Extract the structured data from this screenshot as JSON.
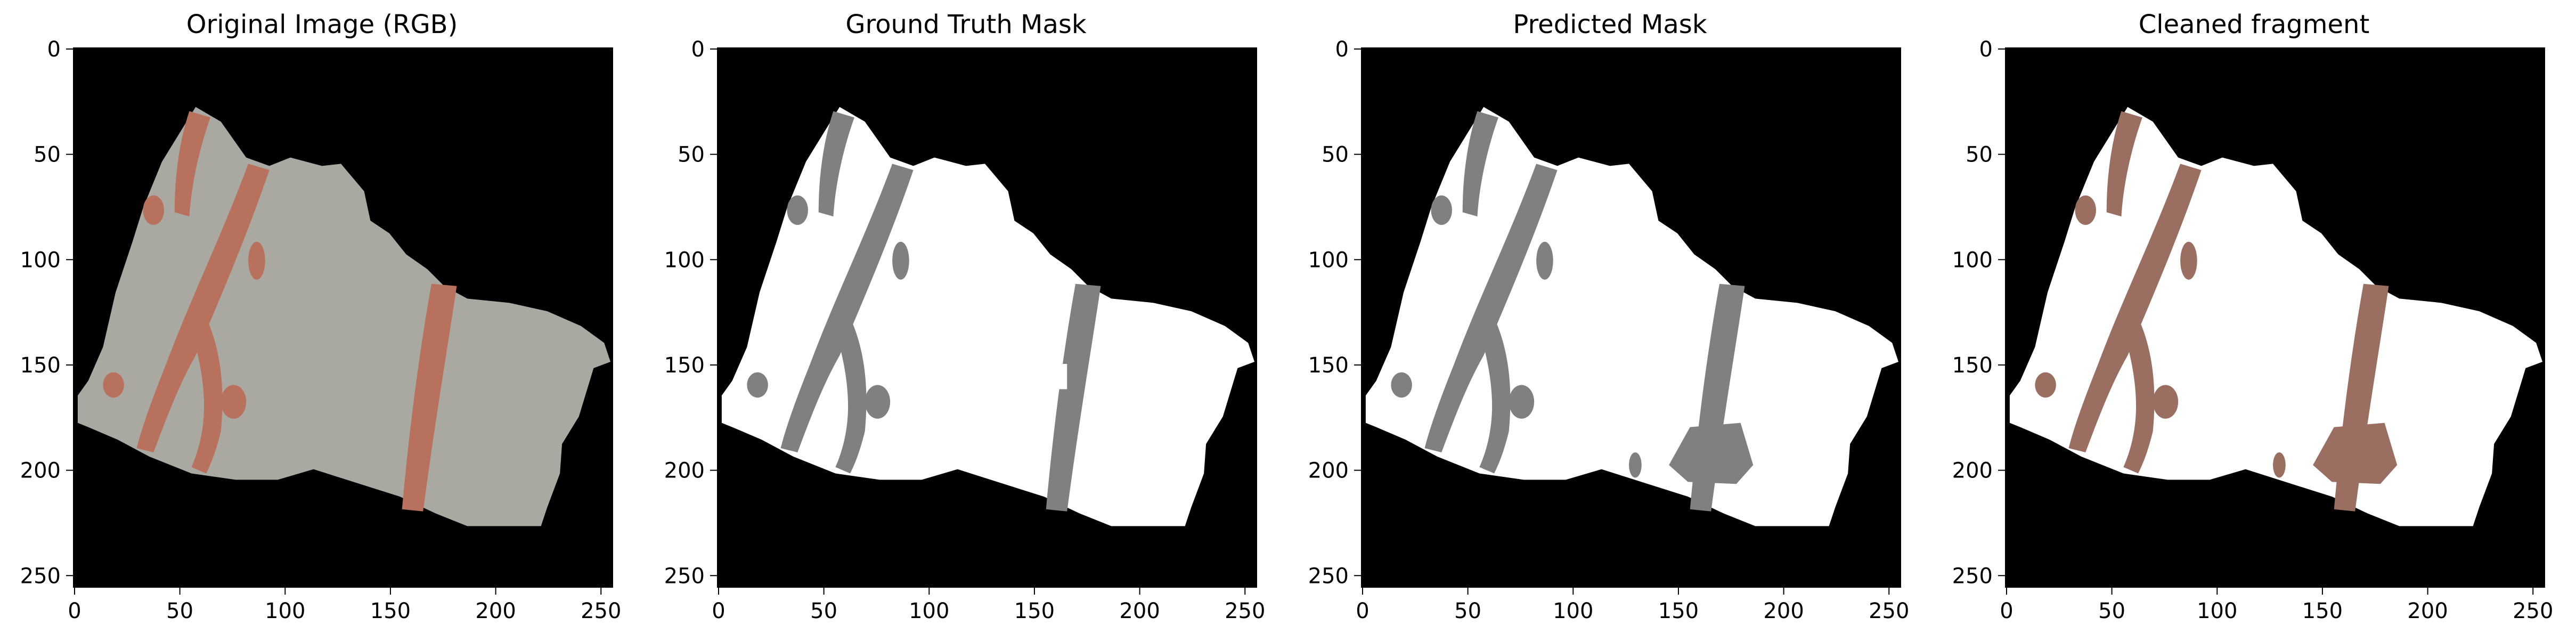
{
  "figure": {
    "panels": [
      {
        "title": "Original Image (RGB)",
        "kind": "rgb",
        "x_ticks": [
          "0",
          "50",
          "100",
          "150",
          "200",
          "250"
        ],
        "y_ticks": [
          "0",
          "50",
          "100",
          "150",
          "200",
          "250"
        ]
      },
      {
        "title": "Ground Truth Mask",
        "kind": "gt",
        "x_ticks": [
          "0",
          "50",
          "100",
          "150",
          "200",
          "250"
        ],
        "y_ticks": [
          "0",
          "50",
          "100",
          "150",
          "200",
          "250"
        ]
      },
      {
        "title": "Predicted Mask",
        "kind": "pred",
        "x_ticks": [
          "0",
          "50",
          "100",
          "150",
          "200",
          "250"
        ],
        "y_ticks": [
          "0",
          "50",
          "100",
          "150",
          "200",
          "250"
        ]
      },
      {
        "title": "Cleaned fragment",
        "kind": "cleaned",
        "x_ticks": [
          "0",
          "50",
          "100",
          "150",
          "200",
          "250"
        ],
        "y_ticks": [
          "0",
          "50",
          "100",
          "150",
          "200",
          "250"
        ]
      }
    ],
    "colors": {
      "background": "#000000",
      "fragment_rgb": "#a9a8a1",
      "paint_rgb": "#b8715d",
      "fragment_mask": "#ffffff",
      "paint_mask": "#808080",
      "paint_cleaned": "#9a6f62"
    }
  }
}
